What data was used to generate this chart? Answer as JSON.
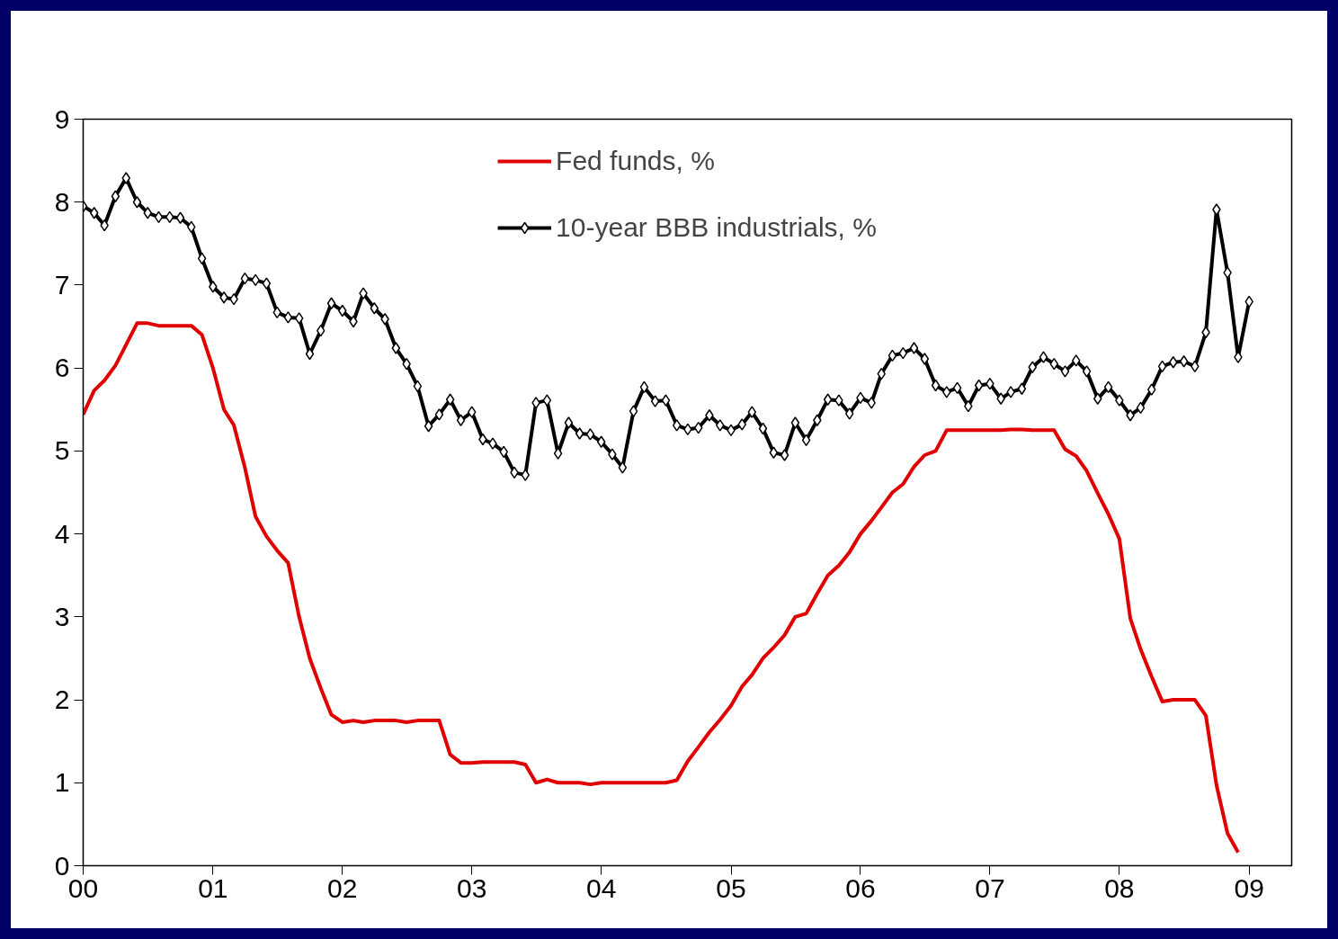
{
  "chart_data": {
    "type": "line",
    "x": [
      "2000-01",
      "2000-02",
      "2000-03",
      "2000-04",
      "2000-05",
      "2000-06",
      "2000-07",
      "2000-08",
      "2000-09",
      "2000-10",
      "2000-11",
      "2000-12",
      "2001-01",
      "2001-02",
      "2001-03",
      "2001-04",
      "2001-05",
      "2001-06",
      "2001-07",
      "2001-08",
      "2001-09",
      "2001-10",
      "2001-11",
      "2001-12",
      "2002-01",
      "2002-02",
      "2002-03",
      "2002-04",
      "2002-05",
      "2002-06",
      "2002-07",
      "2002-08",
      "2002-09",
      "2002-10",
      "2002-11",
      "2002-12",
      "2003-01",
      "2003-02",
      "2003-03",
      "2003-04",
      "2003-05",
      "2003-06",
      "2003-07",
      "2003-08",
      "2003-09",
      "2003-10",
      "2003-11",
      "2003-12",
      "2004-01",
      "2004-02",
      "2004-03",
      "2004-04",
      "2004-05",
      "2004-06",
      "2004-07",
      "2004-08",
      "2004-09",
      "2004-10",
      "2004-11",
      "2004-12",
      "2005-01",
      "2005-02",
      "2005-03",
      "2005-04",
      "2005-05",
      "2005-06",
      "2005-07",
      "2005-08",
      "2005-09",
      "2005-10",
      "2005-11",
      "2005-12",
      "2006-01",
      "2006-02",
      "2006-03",
      "2006-04",
      "2006-05",
      "2006-06",
      "2006-07",
      "2006-08",
      "2006-09",
      "2006-10",
      "2006-11",
      "2006-12",
      "2007-01",
      "2007-02",
      "2007-03",
      "2007-04",
      "2007-05",
      "2007-06",
      "2007-07",
      "2007-08",
      "2007-09",
      "2007-10",
      "2007-11",
      "2007-12",
      "2008-01",
      "2008-02",
      "2008-03",
      "2008-04",
      "2008-05",
      "2008-06",
      "2008-07",
      "2008-08",
      "2008-09",
      "2008-10",
      "2008-11",
      "2008-12",
      "2009-01"
    ],
    "series": [
      {
        "name": "Fed funds, %",
        "color": "#e00000",
        "marker": "none",
        "values": [
          5.44,
          5.73,
          5.85,
          6.03,
          6.28,
          6.54,
          6.54,
          6.51,
          6.51,
          6.51,
          6.51,
          6.4,
          6.0,
          5.5,
          5.31,
          4.8,
          4.21,
          3.97,
          3.8,
          3.65,
          3.0,
          2.5,
          2.14,
          1.82,
          1.73,
          1.75,
          1.73,
          1.75,
          1.75,
          1.75,
          1.73,
          1.75,
          1.75,
          1.75,
          1.34,
          1.24,
          1.24,
          1.25,
          1.25,
          1.25,
          1.25,
          1.22,
          1.0,
          1.04,
          1.0,
          1.0,
          1.0,
          0.98,
          1.0,
          1.0,
          1.0,
          1.0,
          1.0,
          1.0,
          1.0,
          1.03,
          1.26,
          1.43,
          1.61,
          1.76,
          1.93,
          2.16,
          2.3,
          2.5,
          2.63,
          2.78,
          3.0,
          3.04,
          3.28,
          3.5,
          3.62,
          3.78,
          4.0,
          4.16,
          4.32,
          4.5,
          4.6,
          4.81,
          4.95,
          5.0,
          5.25,
          5.25,
          5.25,
          5.25,
          5.25,
          5.25,
          5.26,
          5.26,
          5.25,
          5.25,
          5.25,
          5.02,
          4.94,
          4.76,
          4.49,
          4.24,
          3.94,
          2.98,
          2.61,
          2.28,
          1.98,
          2.0,
          2.0,
          2.0,
          1.81,
          0.97,
          0.39,
          0.16,
          null
        ]
      },
      {
        "name": "10-year BBB industrials, %",
        "color": "#000000",
        "marker": "diamond",
        "values": [
          7.95,
          7.87,
          7.72,
          8.07,
          8.29,
          8.0,
          7.87,
          7.82,
          7.82,
          7.81,
          7.7,
          7.32,
          6.98,
          6.85,
          6.83,
          7.08,
          7.06,
          7.02,
          6.67,
          6.61,
          6.6,
          6.17,
          6.45,
          6.78,
          6.69,
          6.56,
          6.9,
          6.72,
          6.59,
          6.24,
          6.05,
          5.78,
          5.3,
          5.44,
          5.62,
          5.37,
          5.47,
          5.14,
          5.09,
          4.99,
          4.74,
          4.71,
          5.58,
          5.61,
          4.97,
          5.34,
          5.21,
          5.2,
          5.11,
          4.96,
          4.8,
          5.48,
          5.77,
          5.6,
          5.61,
          5.31,
          5.26,
          5.28,
          5.43,
          5.31,
          5.25,
          5.32,
          5.47,
          5.27,
          4.98,
          4.95,
          5.34,
          5.13,
          5.37,
          5.62,
          5.61,
          5.45,
          5.64,
          5.58,
          5.93,
          6.15,
          6.18,
          6.24,
          6.11,
          5.79,
          5.71,
          5.76,
          5.54,
          5.79,
          5.81,
          5.63,
          5.71,
          5.75,
          6.01,
          6.13,
          6.05,
          5.96,
          6.09,
          5.96,
          5.63,
          5.77,
          5.61,
          5.43,
          5.52,
          5.74,
          6.02,
          6.07,
          6.08,
          6.02,
          6.43,
          7.91,
          7.15,
          6.13,
          6.8
        ]
      }
    ],
    "xlim": [
      "2000-01",
      "2009-05"
    ],
    "xticks": [
      {
        "value": "2000-01",
        "label": "00"
      },
      {
        "value": "2001-01",
        "label": "01"
      },
      {
        "value": "2002-01",
        "label": "02"
      },
      {
        "value": "2003-01",
        "label": "03"
      },
      {
        "value": "2004-01",
        "label": "04"
      },
      {
        "value": "2005-01",
        "label": "05"
      },
      {
        "value": "2006-01",
        "label": "06"
      },
      {
        "value": "2007-01",
        "label": "07"
      },
      {
        "value": "2008-01",
        "label": "08"
      },
      {
        "value": "2009-01",
        "label": "09"
      }
    ],
    "ylim": [
      0,
      9
    ],
    "yticks": [
      0,
      1,
      2,
      3,
      4,
      5,
      6,
      7,
      8,
      9
    ],
    "grid": false,
    "legend": "top",
    "line_style": "solid"
  }
}
